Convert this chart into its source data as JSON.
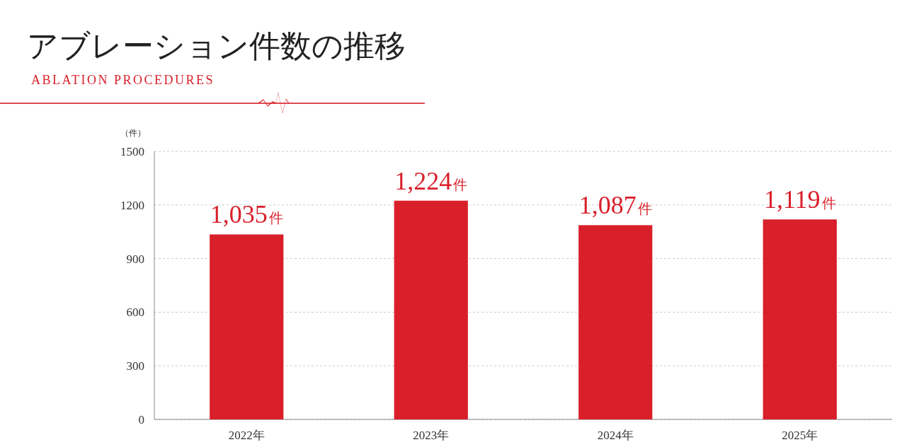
{
  "chart_data": {
    "type": "bar",
    "title": "アブレーション件数の推移",
    "subtitle": "ABLATION PROCEDURES",
    "ylabel": "（件）",
    "categories": [
      "2022年",
      "2023年",
      "2024年",
      "2025年"
    ],
    "values": [
      1035,
      1224,
      1087,
      1119
    ],
    "value_labels": [
      "1,035件",
      "1,224件",
      "1,087件",
      "1,119件"
    ],
    "color": "#d91f2a",
    "ylim": [
      0,
      1500
    ],
    "yticks": [
      0,
      300,
      600,
      900,
      1200,
      1500
    ],
    "grid": "y"
  }
}
